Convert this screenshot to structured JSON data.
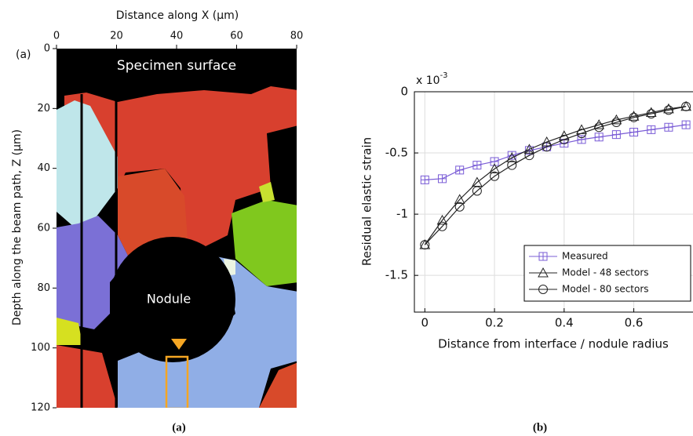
{
  "chart_data": [
    {
      "type": "map",
      "panel_label": "(a)",
      "caption": "(a)",
      "x_label": "Distance along X (μm)",
      "y_label": "Depth along the beam path, Z (μm)",
      "annotations": [
        "Specimen surface",
        "Nodule"
      ],
      "xlim": [
        0,
        80
      ],
      "xticks": [
        0,
        20,
        40,
        60,
        80
      ],
      "ylim": [
        120,
        0
      ],
      "yticks": [
        0,
        20,
        40,
        60,
        80,
        100,
        120
      ]
    },
    {
      "type": "line",
      "caption": "(b)",
      "y_multiplier": {
        "base": "x 10",
        "exponent": "-3"
      },
      "x_label": "Distance from interface / nodule radius",
      "y_label": "Residual elastic strain",
      "x": [
        0,
        0.05,
        0.1,
        0.15,
        0.2,
        0.25,
        0.3,
        0.35,
        0.4,
        0.45,
        0.5,
        0.55,
        0.6,
        0.65,
        0.7,
        0.75
      ],
      "series": [
        {
          "name": "Measured",
          "color": "#7a5cd6",
          "marker": "square-plus",
          "values": [
            -0.72,
            -0.71,
            -0.64,
            -0.6,
            -0.57,
            -0.52,
            -0.48,
            -0.45,
            -0.42,
            -0.39,
            -0.37,
            -0.35,
            -0.33,
            -0.31,
            -0.29,
            -0.27
          ]
        },
        {
          "name": "Model - 48 sectors",
          "color": "#222222",
          "marker": "triangle",
          "values": [
            -1.25,
            -1.05,
            -0.88,
            -0.74,
            -0.63,
            -0.54,
            -0.47,
            -0.41,
            -0.36,
            -0.31,
            -0.27,
            -0.23,
            -0.2,
            -0.17,
            -0.14,
            -0.12
          ]
        },
        {
          "name": "Model - 80 sectors",
          "color": "#222222",
          "marker": "circle",
          "values": [
            -1.25,
            -1.1,
            -0.94,
            -0.81,
            -0.69,
            -0.6,
            -0.52,
            -0.45,
            -0.39,
            -0.34,
            -0.29,
            -0.25,
            -0.21,
            -0.18,
            -0.15,
            -0.12
          ]
        }
      ],
      "xlim": [
        -0.03,
        0.77
      ],
      "xticks": [
        0,
        0.2,
        0.4,
        0.6
      ],
      "ylim": [
        -1.8,
        0
      ],
      "yticks": [
        -1.5,
        -1,
        -0.5,
        0
      ],
      "grid": true,
      "legend": "lower right"
    }
  ]
}
